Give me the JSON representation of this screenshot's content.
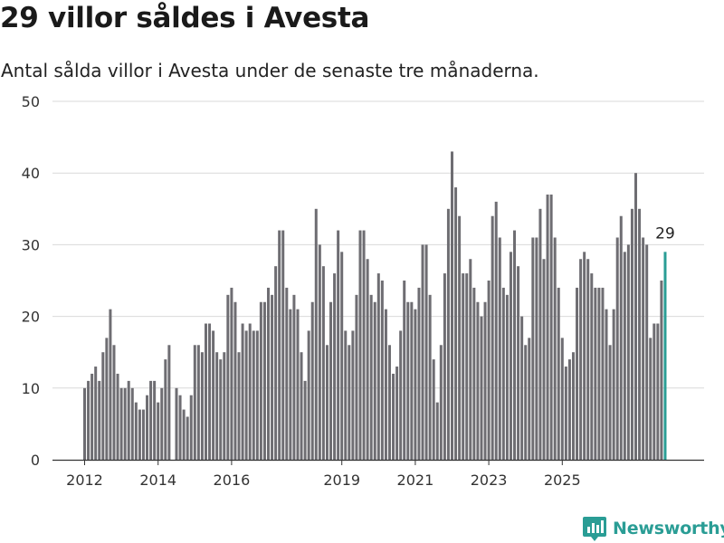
{
  "header": {
    "title": "29 villor såldes i Avesta",
    "subtitle": "Antal sålda villor i Avesta under de senaste tre månaderna."
  },
  "brand": {
    "name": "Newsworthy",
    "color": "#2a9d95",
    "icon": "newsworthy-logo-icon"
  },
  "colors": {
    "bar": "#6e6d72",
    "highlight": "#2a9d95",
    "grid": "#d9d9d9",
    "axis": "#333333"
  },
  "chart_data": {
    "type": "bar",
    "title": "29 villor såldes i Avesta",
    "subtitle": "Antal sålda villor i Avesta under de senaste tre månaderna.",
    "xlabel": "",
    "ylabel": "",
    "ylim": [
      0,
      50
    ],
    "yticks": [
      0,
      10,
      20,
      30,
      40,
      50
    ],
    "xticks": [
      {
        "label": "2012",
        "month_index": 0
      },
      {
        "label": "2014",
        "month_index": 20
      },
      {
        "label": "2016",
        "month_index": 40
      },
      {
        "label": "2019",
        "month_index": 70
      },
      {
        "label": "2021",
        "month_index": 90
      },
      {
        "label": "2023",
        "month_index": 110
      },
      {
        "label": "2025",
        "month_index": 130
      }
    ],
    "grid": true,
    "values": [
      10,
      11,
      12,
      13,
      11,
      15,
      17,
      21,
      16,
      12,
      10,
      10,
      11,
      10,
      8,
      7,
      7,
      9,
      11,
      11,
      8,
      10,
      14,
      16,
      null,
      10,
      9,
      7,
      6,
      9,
      16,
      16,
      15,
      19,
      19,
      18,
      15,
      14,
      15,
      23,
      24,
      22,
      15,
      19,
      18,
      19,
      18,
      18,
      22,
      22,
      24,
      23,
      27,
      32,
      32,
      24,
      21,
      23,
      21,
      15,
      11,
      18,
      22,
      35,
      30,
      27,
      16,
      22,
      26,
      32,
      29,
      18,
      16,
      18,
      23,
      32,
      32,
      28,
      23,
      22,
      26,
      25,
      21,
      16,
      12,
      13,
      18,
      25,
      22,
      22,
      21,
      24,
      30,
      30,
      23,
      14,
      8,
      16,
      26,
      35,
      43,
      38,
      34,
      26,
      26,
      28,
      24,
      22,
      20,
      22,
      25,
      34,
      36,
      31,
      24,
      23,
      29,
      32,
      27,
      20,
      16,
      17,
      31,
      31,
      35,
      28,
      37,
      37,
      31,
      24,
      17,
      13,
      14,
      15,
      24,
      28,
      29,
      28,
      26,
      24,
      24,
      24,
      21,
      16,
      21,
      31,
      34,
      29,
      30,
      35,
      40,
      35,
      31,
      30,
      17,
      19,
      19,
      25,
      29
    ],
    "highlight": {
      "index": 158,
      "value": 29,
      "label": "29"
    }
  }
}
